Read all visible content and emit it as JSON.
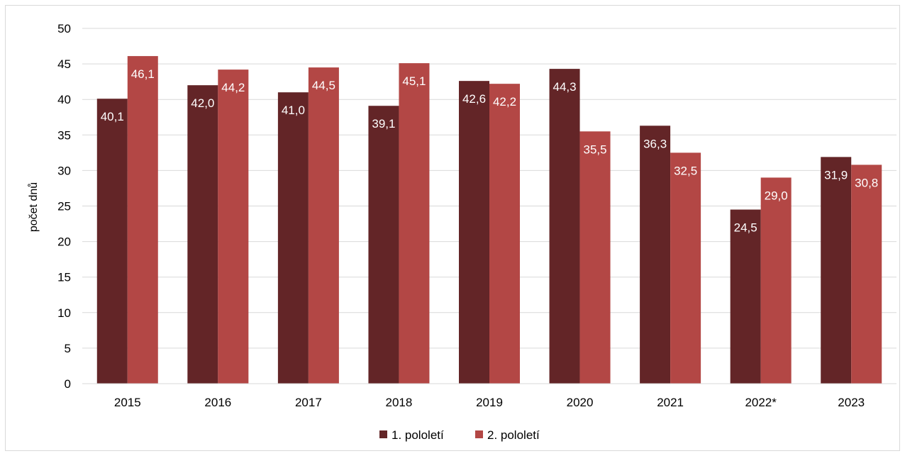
{
  "chart_data": {
    "type": "bar",
    "title": "",
    "xlabel": "",
    "ylabel": "počet dnů",
    "categories": [
      "2015",
      "2016",
      "2017",
      "2018",
      "2019",
      "2020",
      "2021",
      "2022*",
      "2023"
    ],
    "series": [
      {
        "name": "1. pololetí",
        "color": "#632527",
        "values": [
          40.1,
          42.0,
          41.0,
          39.1,
          42.6,
          44.3,
          36.3,
          24.5,
          31.9
        ],
        "labels": [
          "40,1",
          "42,0",
          "41,0",
          "39,1",
          "42,6",
          "44,3",
          "36,3",
          "24,5",
          "31,9"
        ]
      },
      {
        "name": "2. pololetí",
        "color": "#B34745",
        "values": [
          46.1,
          44.2,
          44.5,
          45.1,
          42.2,
          35.5,
          32.5,
          29.0,
          30.8
        ],
        "labels": [
          "46,1",
          "44,2",
          "44,5",
          "45,1",
          "42,2",
          "35,5",
          "32,5",
          "29,0",
          "30,8"
        ]
      }
    ],
    "ylim": [
      0,
      50
    ],
    "yticks": [
      "0",
      "5",
      "10",
      "15",
      "20",
      "25",
      "30",
      "35",
      "40",
      "45",
      "50"
    ],
    "grid": true,
    "legend_position": "bottom",
    "gridline_color": "#d9d9d9"
  }
}
